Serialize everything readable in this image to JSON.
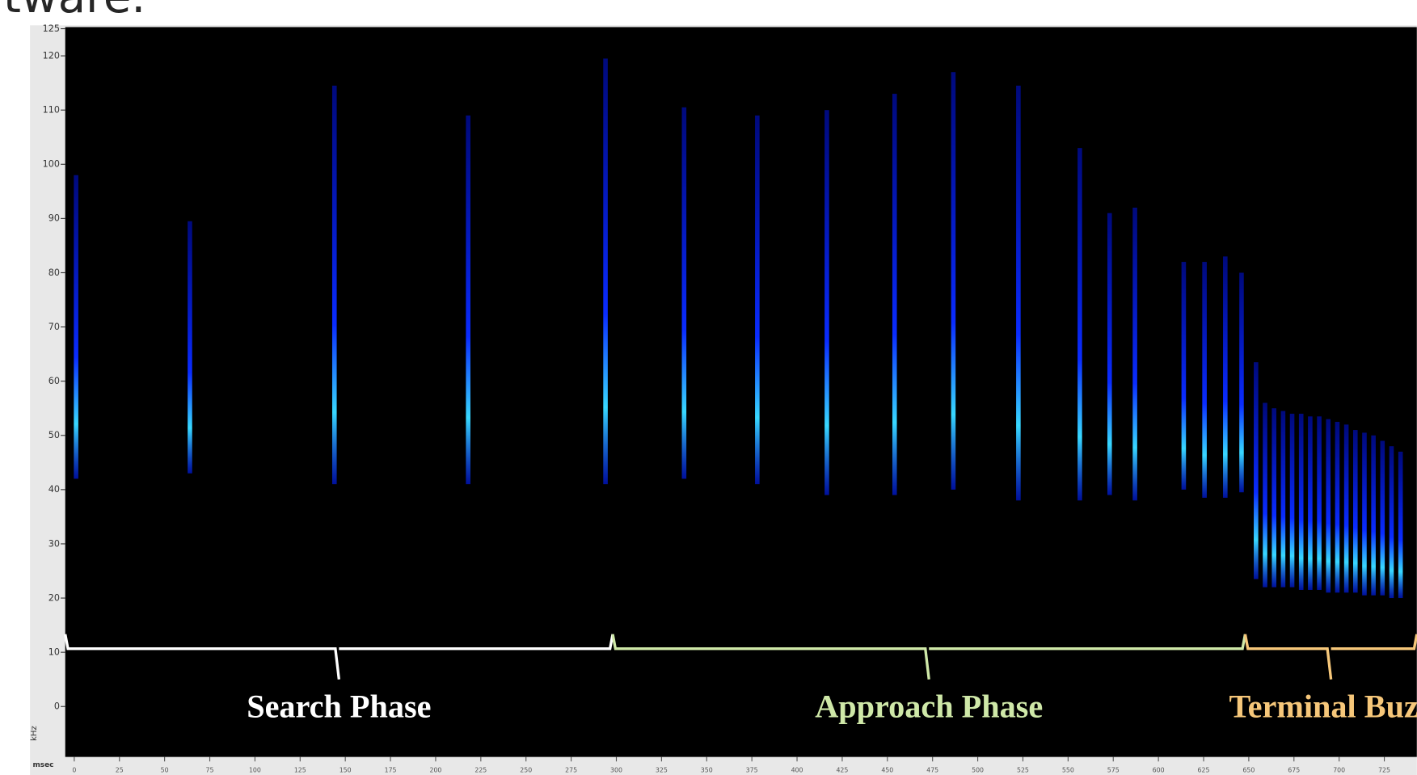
{
  "header": {
    "text": "tware."
  },
  "chart_data": {
    "type": "spectrogram",
    "y_label": "kHz",
    "x_label": "msec",
    "xlim": [
      -23.5,
      743
    ],
    "ylim": [
      -9.3,
      125.3
    ],
    "xticks": [
      0,
      25,
      50,
      75,
      100,
      125,
      150,
      175,
      200,
      225,
      250,
      275,
      300,
      325,
      350,
      375,
      400,
      425,
      450,
      475,
      500,
      525,
      550,
      575,
      600,
      625,
      650,
      675,
      700,
      725
    ],
    "yticks": [
      0,
      10,
      20,
      30,
      40,
      50,
      60,
      70,
      80,
      90,
      100,
      110,
      120,
      125
    ],
    "background": "#000000",
    "calls": {
      "color": "#0a2cff",
      "highlight": "#38d8ff",
      "x": [
        1,
        64,
        144,
        218,
        294,
        337.5,
        378,
        416.5,
        454,
        486.5,
        522.5,
        556.5,
        573,
        587,
        614,
        625.5,
        637,
        646,
        654,
        659,
        664,
        669,
        674,
        679,
        684,
        689,
        694,
        699,
        704,
        709,
        714,
        719,
        724,
        729,
        734
      ],
      "fmax": [
        98,
        89.5,
        114.5,
        109,
        119.5,
        110.5,
        109,
        110,
        113,
        117,
        114.5,
        103,
        91,
        92,
        82,
        82,
        83,
        80,
        63.5,
        56,
        55,
        54.5,
        54,
        54,
        53.5,
        53.5,
        53,
        52.5,
        52,
        51,
        50.5,
        50,
        49,
        48,
        47
      ],
      "fmin": [
        42,
        43,
        41,
        41,
        41,
        42,
        41,
        39,
        39,
        40,
        38,
        38,
        39,
        38,
        40,
        38.5,
        38.5,
        39.5,
        23.5,
        22,
        22,
        22,
        22,
        21.5,
        21.5,
        21.5,
        21,
        21,
        21,
        21,
        20.5,
        20.5,
        20.5,
        20,
        20
      ]
    },
    "phases": [
      {
        "label": "Search Phase",
        "start": -5,
        "end": 298,
        "color": "#ffffff"
      },
      {
        "label": "Approach Phase",
        "start": 298,
        "end": 648,
        "color": "#cfe8a8"
      },
      {
        "label": "Terminal Buzz",
        "start": 648,
        "end": 743,
        "color": "#f6c77a"
      }
    ],
    "bracket_level": 10
  }
}
